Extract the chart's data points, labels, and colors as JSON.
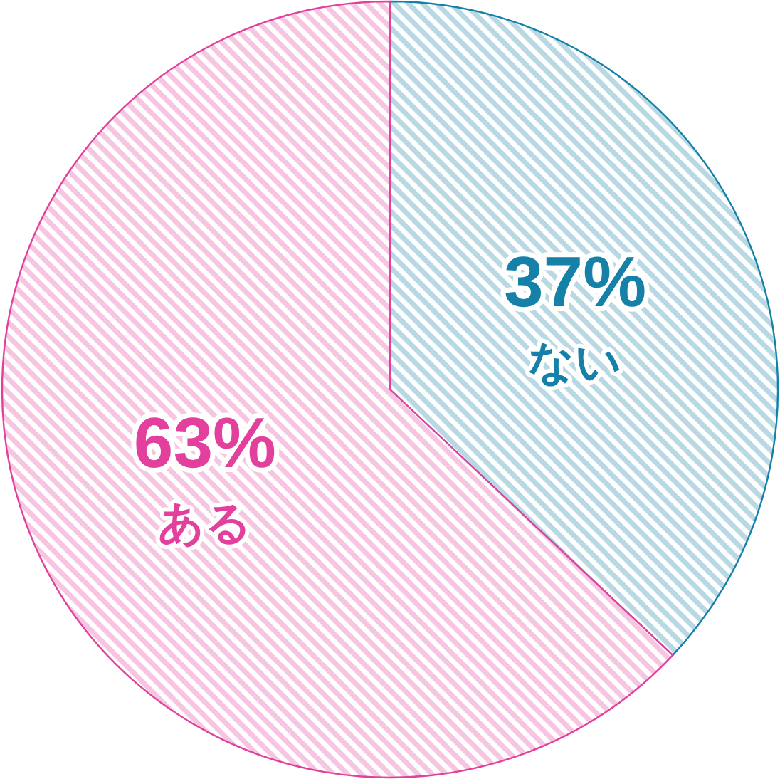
{
  "chart_data": {
    "type": "pie",
    "categories": [
      "ない",
      "ある"
    ],
    "values": [
      37,
      63
    ],
    "colors": [
      "#1580a8",
      "#e2409c"
    ],
    "value_labels": [
      "37%",
      "63%"
    ]
  }
}
